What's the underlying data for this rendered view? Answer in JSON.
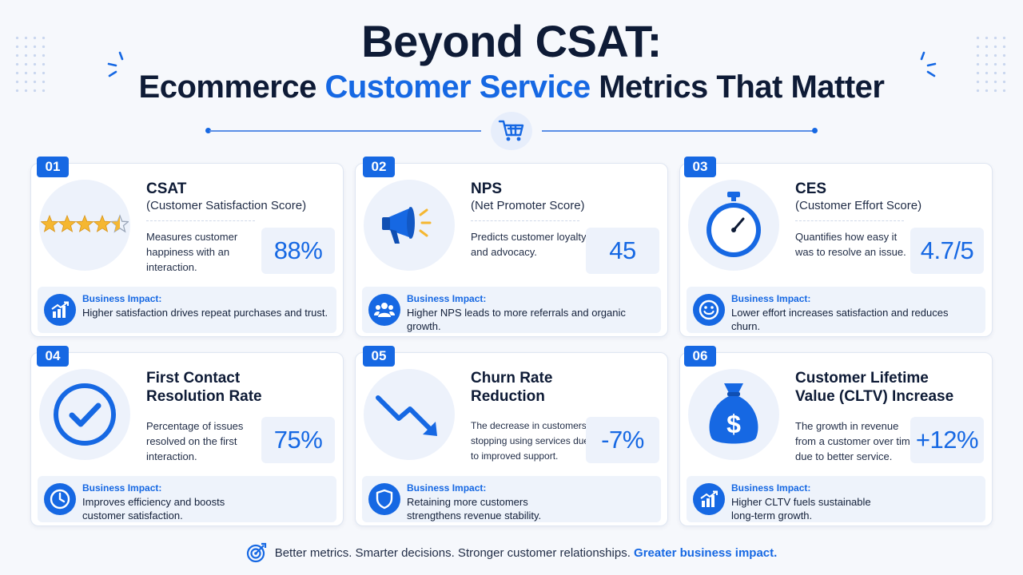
{
  "header": {
    "title_line1": "Beyond CSAT:",
    "title_line2_pre": "Ecommerce",
    "title_line2_accent": "Customer Service",
    "title_line2_post": "Metrics That Matter"
  },
  "colors": {
    "accent": "#1668e3",
    "dark": "#0e1b36",
    "background": "#f6f8fc",
    "star": "#f5b731"
  },
  "cards": [
    {
      "number": "01",
      "title": "CSAT",
      "subtitle": "(Customer Satisfaction Score)",
      "description": "Measures customer happiness with an interaction.",
      "value": "88%",
      "impact_label": "Business Impact:",
      "impact_text": "Higher satisfaction drives repeat purchases and trust.",
      "icon": "star-rating-icon",
      "impact_icon": "growth-chart-icon"
    },
    {
      "number": "02",
      "title": "NPS",
      "subtitle": "(Net Promoter Score)",
      "description": "Predicts customer loyalty and advocacy.",
      "value": "45",
      "impact_label": "Business Impact:",
      "impact_text": "Higher NPS leads to more referrals and organic growth.",
      "icon": "megaphone-icon",
      "impact_icon": "people-icon"
    },
    {
      "number": "03",
      "title": "CES",
      "subtitle": "(Customer Effort Score)",
      "description": "Quantifies how easy it was to resolve an issue.",
      "value": "4.7/5",
      "impact_label": "Business Impact:",
      "impact_text": "Lower effort increases satisfaction and reduces churn.",
      "icon": "stopwatch-icon",
      "impact_icon": "smile-icon"
    },
    {
      "number": "04",
      "title_line1": "First Contact",
      "title_line2": "Resolution Rate",
      "description": "Percentage of issues resolved on the first interaction.",
      "value": "75%",
      "impact_label": "Business Impact:",
      "impact_text": "Improves efficiency and boosts customer satisfaction.",
      "icon": "checkmark-circle-icon",
      "impact_icon": "clock-icon"
    },
    {
      "number": "05",
      "title_line1": "Churn Rate",
      "title_line2": "Reduction",
      "description": "The decrease in customers stopping using services due to improved support.",
      "value": "-7%",
      "impact_label": "Business Impact:",
      "impact_text": "Retaining more customers strengthens revenue stability.",
      "icon": "down-trend-arrow-icon",
      "impact_icon": "shield-icon"
    },
    {
      "number": "06",
      "title_line1": "Customer Lifetime",
      "title_line2": "Value (CLTV) Increase",
      "description": "The growth in revenue from a customer over time due to better service.",
      "value": "+12%",
      "impact_label": "Business Impact:",
      "impact_text": "Higher CLTV fuels sustainable long-term growth.",
      "icon": "money-bag-icon",
      "impact_icon": "growth-chart-icon"
    }
  ],
  "footer": {
    "text": "Better metrics. Smarter decisions. Stronger customer relationships.",
    "emphasis": "Greater business impact."
  }
}
